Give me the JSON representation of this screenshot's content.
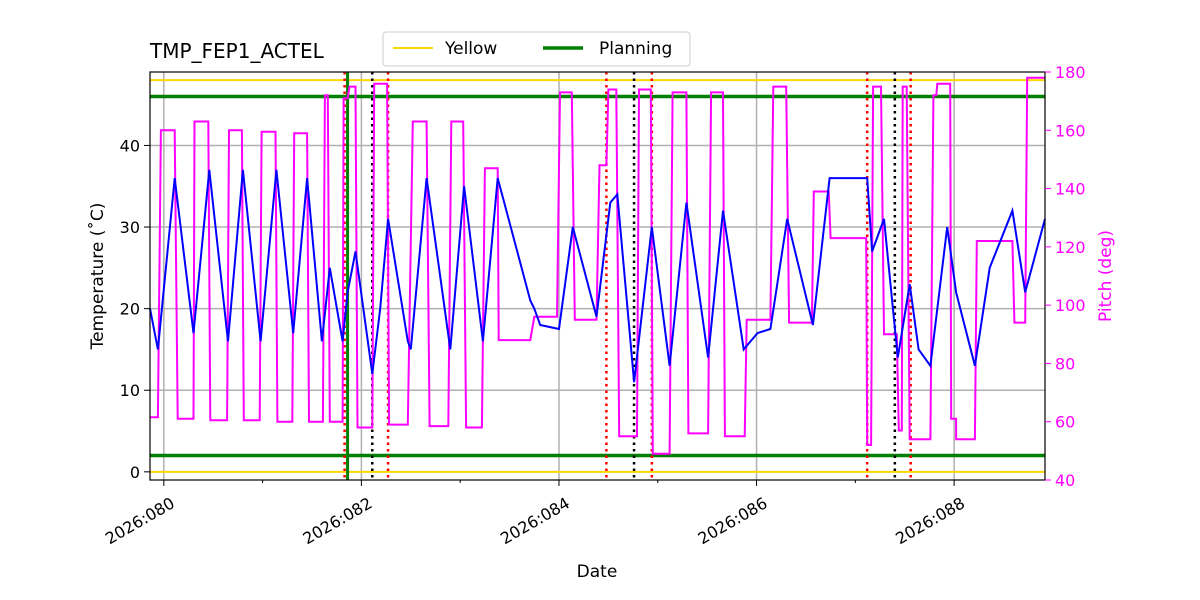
{
  "chart_data": {
    "type": "line",
    "title": "TMP_FEP1_ACTEL",
    "xlabel": "Date",
    "ylabel": "Temperature ($^\\circ$C)",
    "ylabel_display": "Temperature (˚C)",
    "y2label": "Pitch (deg)",
    "xlim": [
      79.86,
      88.92
    ],
    "ylim": [
      -1,
      49
    ],
    "y2lim": [
      40,
      180
    ],
    "grid": true,
    "legend": {
      "placement": "top-center, above plot",
      "entries": [
        {
          "name": "Yellow",
          "color": "#ffd700"
        },
        {
          "name": "Planning",
          "color": "#008000"
        }
      ]
    },
    "x_ticks": [
      {
        "value": 80,
        "label": "2026:080"
      },
      {
        "value": 82,
        "label": "2026:082"
      },
      {
        "value": 84,
        "label": "2026:084"
      },
      {
        "value": 86,
        "label": "2026:086"
      },
      {
        "value": 88,
        "label": "2026:088"
      }
    ],
    "x_minor_ticks": [
      81,
      83,
      85,
      87
    ],
    "y_ticks": [
      0,
      10,
      20,
      30,
      40
    ],
    "y2_ticks": [
      40,
      60,
      80,
      100,
      120,
      140,
      160,
      180
    ],
    "limits": {
      "yellow": [
        48,
        0
      ],
      "planning": [
        46,
        2
      ]
    },
    "colors": {
      "temperature": "#0000ff",
      "pitch": "#ff00ff",
      "yellow": "#ffd700",
      "planning": "#008000",
      "red_marker": "#ff0000",
      "black_marker": "#000000"
    },
    "vertical_markers": {
      "red_dotted": [
        81.83,
        82.27,
        84.48,
        84.94,
        87.12,
        87.56
      ],
      "black_dotted": [
        82.11,
        84.76,
        87.4
      ],
      "green_solid": [
        81.86
      ]
    },
    "temperature_series": {
      "x": [
        79.86,
        79.94,
        80.11,
        80.3,
        80.46,
        80.65,
        80.8,
        80.98,
        81.14,
        81.31,
        81.45,
        81.6,
        81.68,
        81.81,
        81.86,
        81.94,
        82.11,
        82.19,
        82.27,
        82.47,
        82.5,
        82.66,
        82.9,
        83.04,
        83.23,
        83.38,
        83.71,
        83.75,
        83.81,
        84.0,
        84.14,
        84.38,
        84.52,
        84.59,
        84.76,
        84.94,
        85.12,
        85.29,
        85.51,
        85.66,
        85.87,
        86.01,
        86.14,
        86.31,
        86.57,
        86.74,
        87.12,
        87.17,
        87.29,
        87.43,
        87.55,
        87.64,
        87.76,
        87.93,
        88.02,
        88.21,
        88.36,
        88.59,
        88.72,
        88.92
      ],
      "y": [
        20,
        15,
        36,
        17,
        37,
        16,
        37,
        16,
        37,
        17,
        36,
        16,
        25,
        16,
        22,
        27,
        12,
        20,
        31,
        16,
        15,
        36,
        15,
        35,
        16,
        36,
        21,
        20,
        18,
        17.5,
        30,
        19,
        33,
        34,
        11,
        30,
        13,
        33,
        14,
        32,
        15,
        17,
        17.5,
        31,
        18,
        36,
        36,
        27,
        31,
        14,
        23,
        15,
        13,
        30,
        22,
        13,
        25,
        32,
        22,
        31
      ]
    },
    "pitch_steps": [
      [
        79.86,
        79.94,
        61.5
      ],
      [
        79.97,
        80.11,
        160
      ],
      [
        80.14,
        80.3,
        61
      ],
      [
        80.31,
        80.45,
        163
      ],
      [
        80.47,
        80.64,
        60.5
      ],
      [
        80.66,
        80.79,
        160
      ],
      [
        80.81,
        80.97,
        60.5
      ],
      [
        80.99,
        81.13,
        159.5
      ],
      [
        81.15,
        81.3,
        60
      ],
      [
        81.32,
        81.45,
        159
      ],
      [
        81.47,
        81.61,
        60
      ],
      [
        81.63,
        81.66,
        172
      ],
      [
        81.68,
        81.81,
        60
      ],
      [
        81.82,
        81.86,
        171
      ],
      [
        81.88,
        81.94,
        175
      ],
      [
        81.96,
        82.11,
        58
      ],
      [
        82.13,
        82.26,
        176
      ],
      [
        82.28,
        82.47,
        59
      ],
      [
        82.52,
        82.66,
        163
      ],
      [
        82.69,
        82.88,
        58.5
      ],
      [
        82.91,
        83.03,
        163
      ],
      [
        83.06,
        83.22,
        58
      ],
      [
        83.25,
        83.38,
        147
      ],
      [
        83.39,
        83.71,
        88
      ],
      [
        83.75,
        83.98,
        96
      ],
      [
        84.01,
        84.13,
        173
      ],
      [
        84.16,
        84.38,
        95
      ],
      [
        84.41,
        84.48,
        148
      ],
      [
        84.5,
        84.58,
        174
      ],
      [
        84.61,
        84.79,
        55
      ],
      [
        84.81,
        84.93,
        174
      ],
      [
        84.95,
        85.12,
        49
      ],
      [
        85.15,
        85.29,
        173
      ],
      [
        85.31,
        85.51,
        56
      ],
      [
        85.54,
        85.66,
        173
      ],
      [
        85.68,
        85.88,
        55
      ],
      [
        85.9,
        86.14,
        95
      ],
      [
        86.17,
        86.3,
        175
      ],
      [
        86.33,
        86.56,
        94
      ],
      [
        86.58,
        86.73,
        139
      ],
      [
        86.75,
        87.11,
        123
      ],
      [
        87.12,
        87.16,
        52
      ],
      [
        87.18,
        87.26,
        175
      ],
      [
        87.29,
        87.42,
        90
      ],
      [
        87.44,
        87.47,
        57
      ],
      [
        87.48,
        87.52,
        175
      ],
      [
        87.55,
        87.76,
        54
      ],
      [
        87.79,
        87.82,
        172
      ],
      [
        87.83,
        87.96,
        176
      ],
      [
        87.97,
        88.02,
        61
      ],
      [
        88.02,
        88.21,
        54
      ],
      [
        88.23,
        88.59,
        122
      ],
      [
        88.61,
        88.72,
        94
      ],
      [
        88.74,
        88.92,
        178
      ]
    ]
  }
}
